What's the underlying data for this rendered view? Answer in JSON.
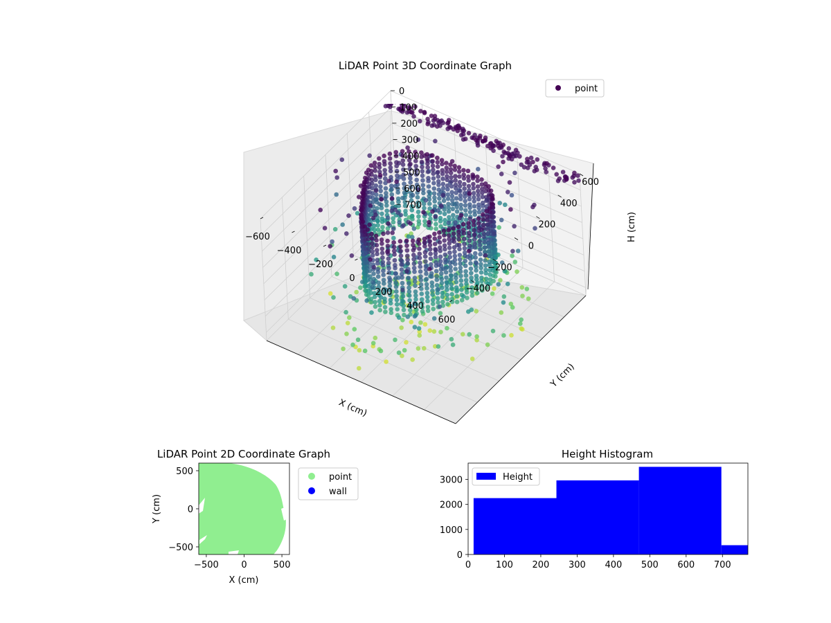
{
  "chart_data": [
    {
      "type": "scatter",
      "title": "LiDAR Point 3D Coordinate Graph",
      "xlabel": "X (cm)",
      "ylabel": "Y (cm)",
      "zlabel": "H (cm)",
      "xlim": [
        -600,
        600
      ],
      "ylim": [
        -600,
        600
      ],
      "zlim": [
        0,
        750
      ],
      "z_axis_inverted": true,
      "x_ticks": [
        -600,
        -400,
        -200,
        0,
        200,
        400,
        600
      ],
      "y_ticks": [
        -400,
        -200,
        0,
        200,
        400,
        600
      ],
      "z_ticks": [
        0,
        100,
        200,
        300,
        400,
        500,
        600,
        700
      ],
      "colormap": "viridis",
      "legend": {
        "placement": "top-right",
        "entries": [
          {
            "label": "point",
            "color": "#440154"
          }
        ]
      },
      "grid": true
    },
    {
      "type": "scatter",
      "title": "LiDAR Point 2D Coordinate Graph",
      "xlabel": "X (cm)",
      "ylabel": "Y (cm)",
      "xlim": [
        -600,
        600
      ],
      "ylim": [
        -600,
        600
      ],
      "x_ticks": [
        -500,
        0,
        500
      ],
      "y_ticks": [
        -500,
        0,
        500
      ],
      "legend": {
        "placement": "outside-right",
        "entries": [
          {
            "label": "point",
            "color": "#90ee90"
          },
          {
            "label": "wall",
            "color": "#0000ff"
          }
        ]
      },
      "grid": false
    },
    {
      "type": "bar",
      "title": "Height Histogram",
      "xlim": [
        0,
        770
      ],
      "ylim": [
        0,
        3650
      ],
      "x_ticks": [
        0,
        100,
        200,
        300,
        400,
        500,
        600,
        700
      ],
      "y_ticks": [
        0,
        1000,
        2000,
        3000
      ],
      "bins": [
        {
          "x0": 15,
          "x1": 243,
          "count": 2250
        },
        {
          "x0": 243,
          "x1": 470,
          "count": 2960
        },
        {
          "x0": 470,
          "x1": 697,
          "count": 3500
        },
        {
          "x0": 697,
          "x1": 770,
          "count": 370
        }
      ],
      "color": "#0000ff",
      "legend": {
        "placement": "top-left",
        "entries": [
          {
            "label": "Height",
            "color": "#0000ff"
          }
        ]
      },
      "grid": false
    }
  ]
}
